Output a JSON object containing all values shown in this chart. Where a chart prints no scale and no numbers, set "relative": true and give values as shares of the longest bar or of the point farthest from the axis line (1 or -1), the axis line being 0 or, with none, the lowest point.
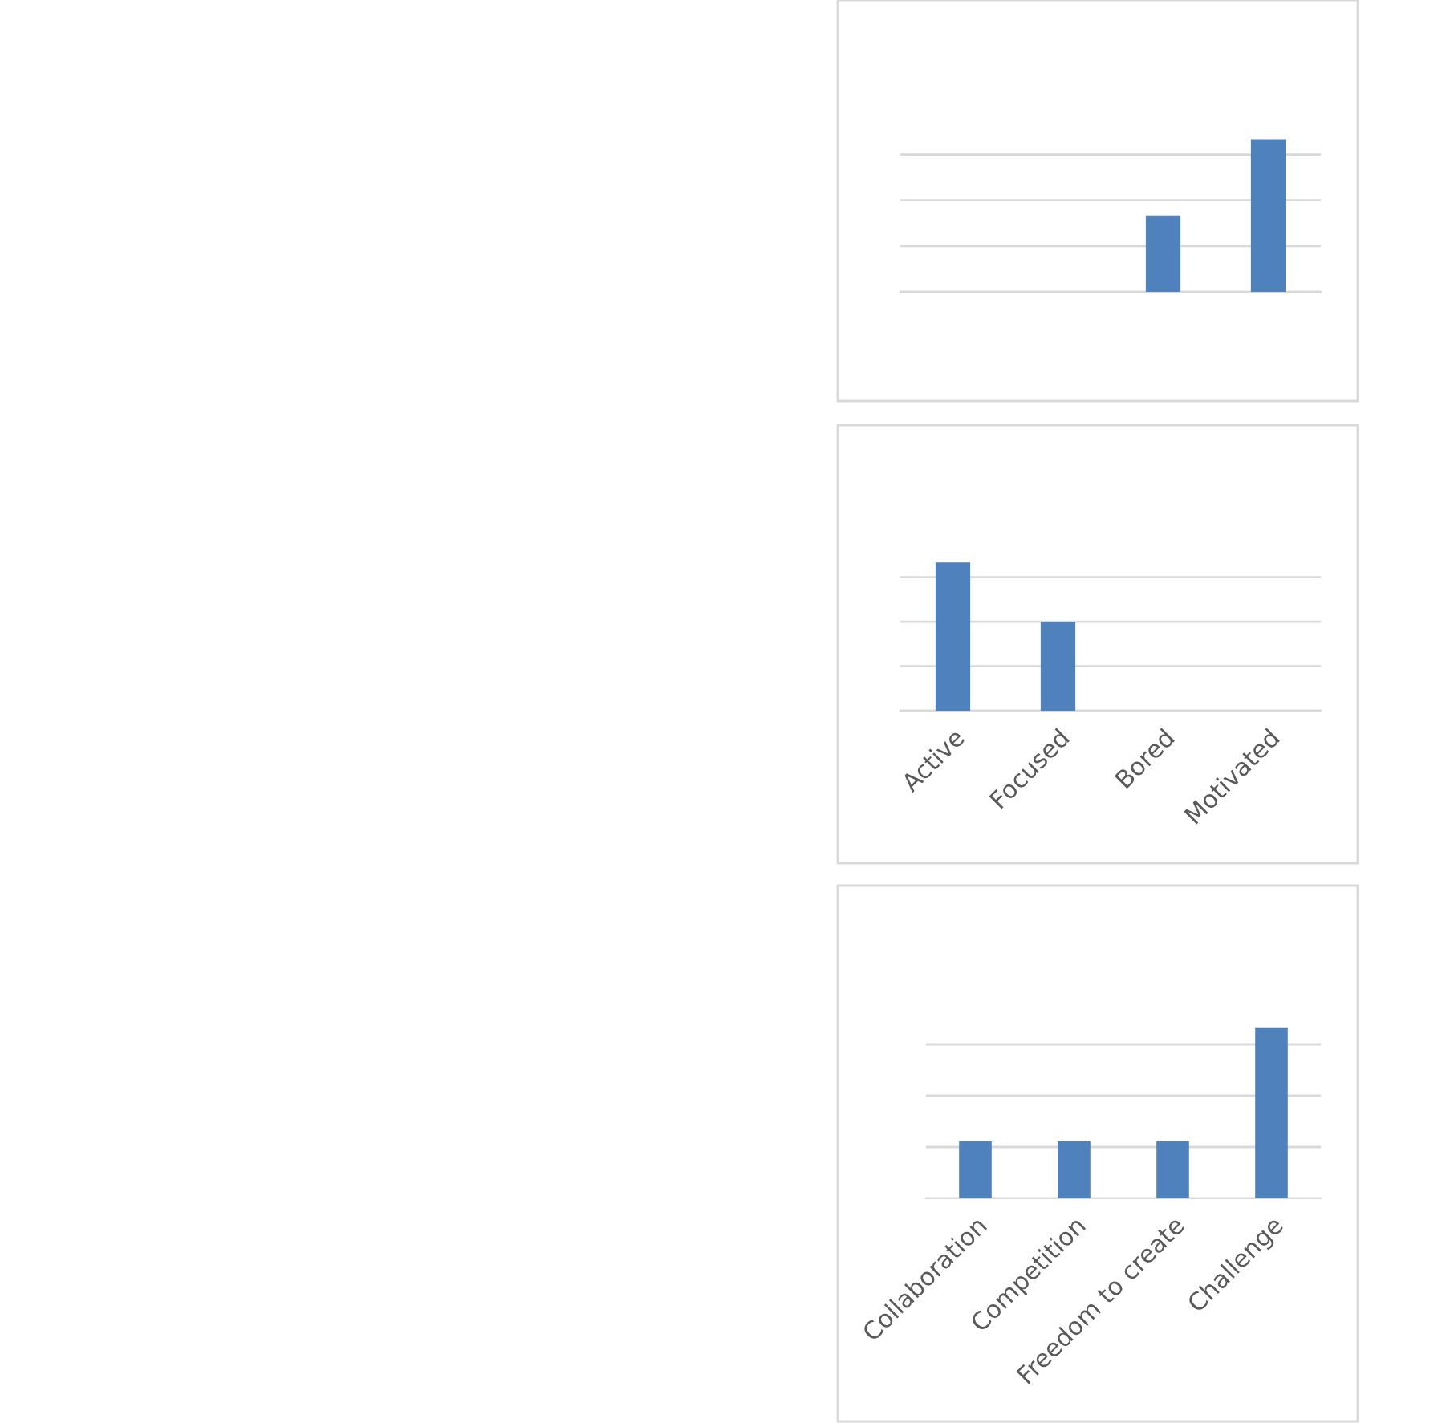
{
  "chart_data": [
    {
      "type": "bar",
      "relative": true,
      "categories": [
        null,
        null,
        null,
        null
      ],
      "values": [
        null,
        null,
        0.5,
        1
      ],
      "color": "#4f81bd",
      "grid": "y"
    },
    {
      "type": "bar",
      "relative": true,
      "categories": [
        "Active",
        "Focused",
        "Bored",
        "Motivated"
      ],
      "values": [
        1,
        0.6,
        null,
        null
      ],
      "color": "#4f81bd",
      "grid": "y"
    },
    {
      "type": "bar",
      "relative": true,
      "categories": [
        "Collaboration",
        "Competition",
        "Freedom to create",
        "Challenge"
      ],
      "values": [
        0.333,
        0.333,
        0.333,
        1
      ],
      "color": "#4f81bd",
      "grid": "y"
    }
  ]
}
